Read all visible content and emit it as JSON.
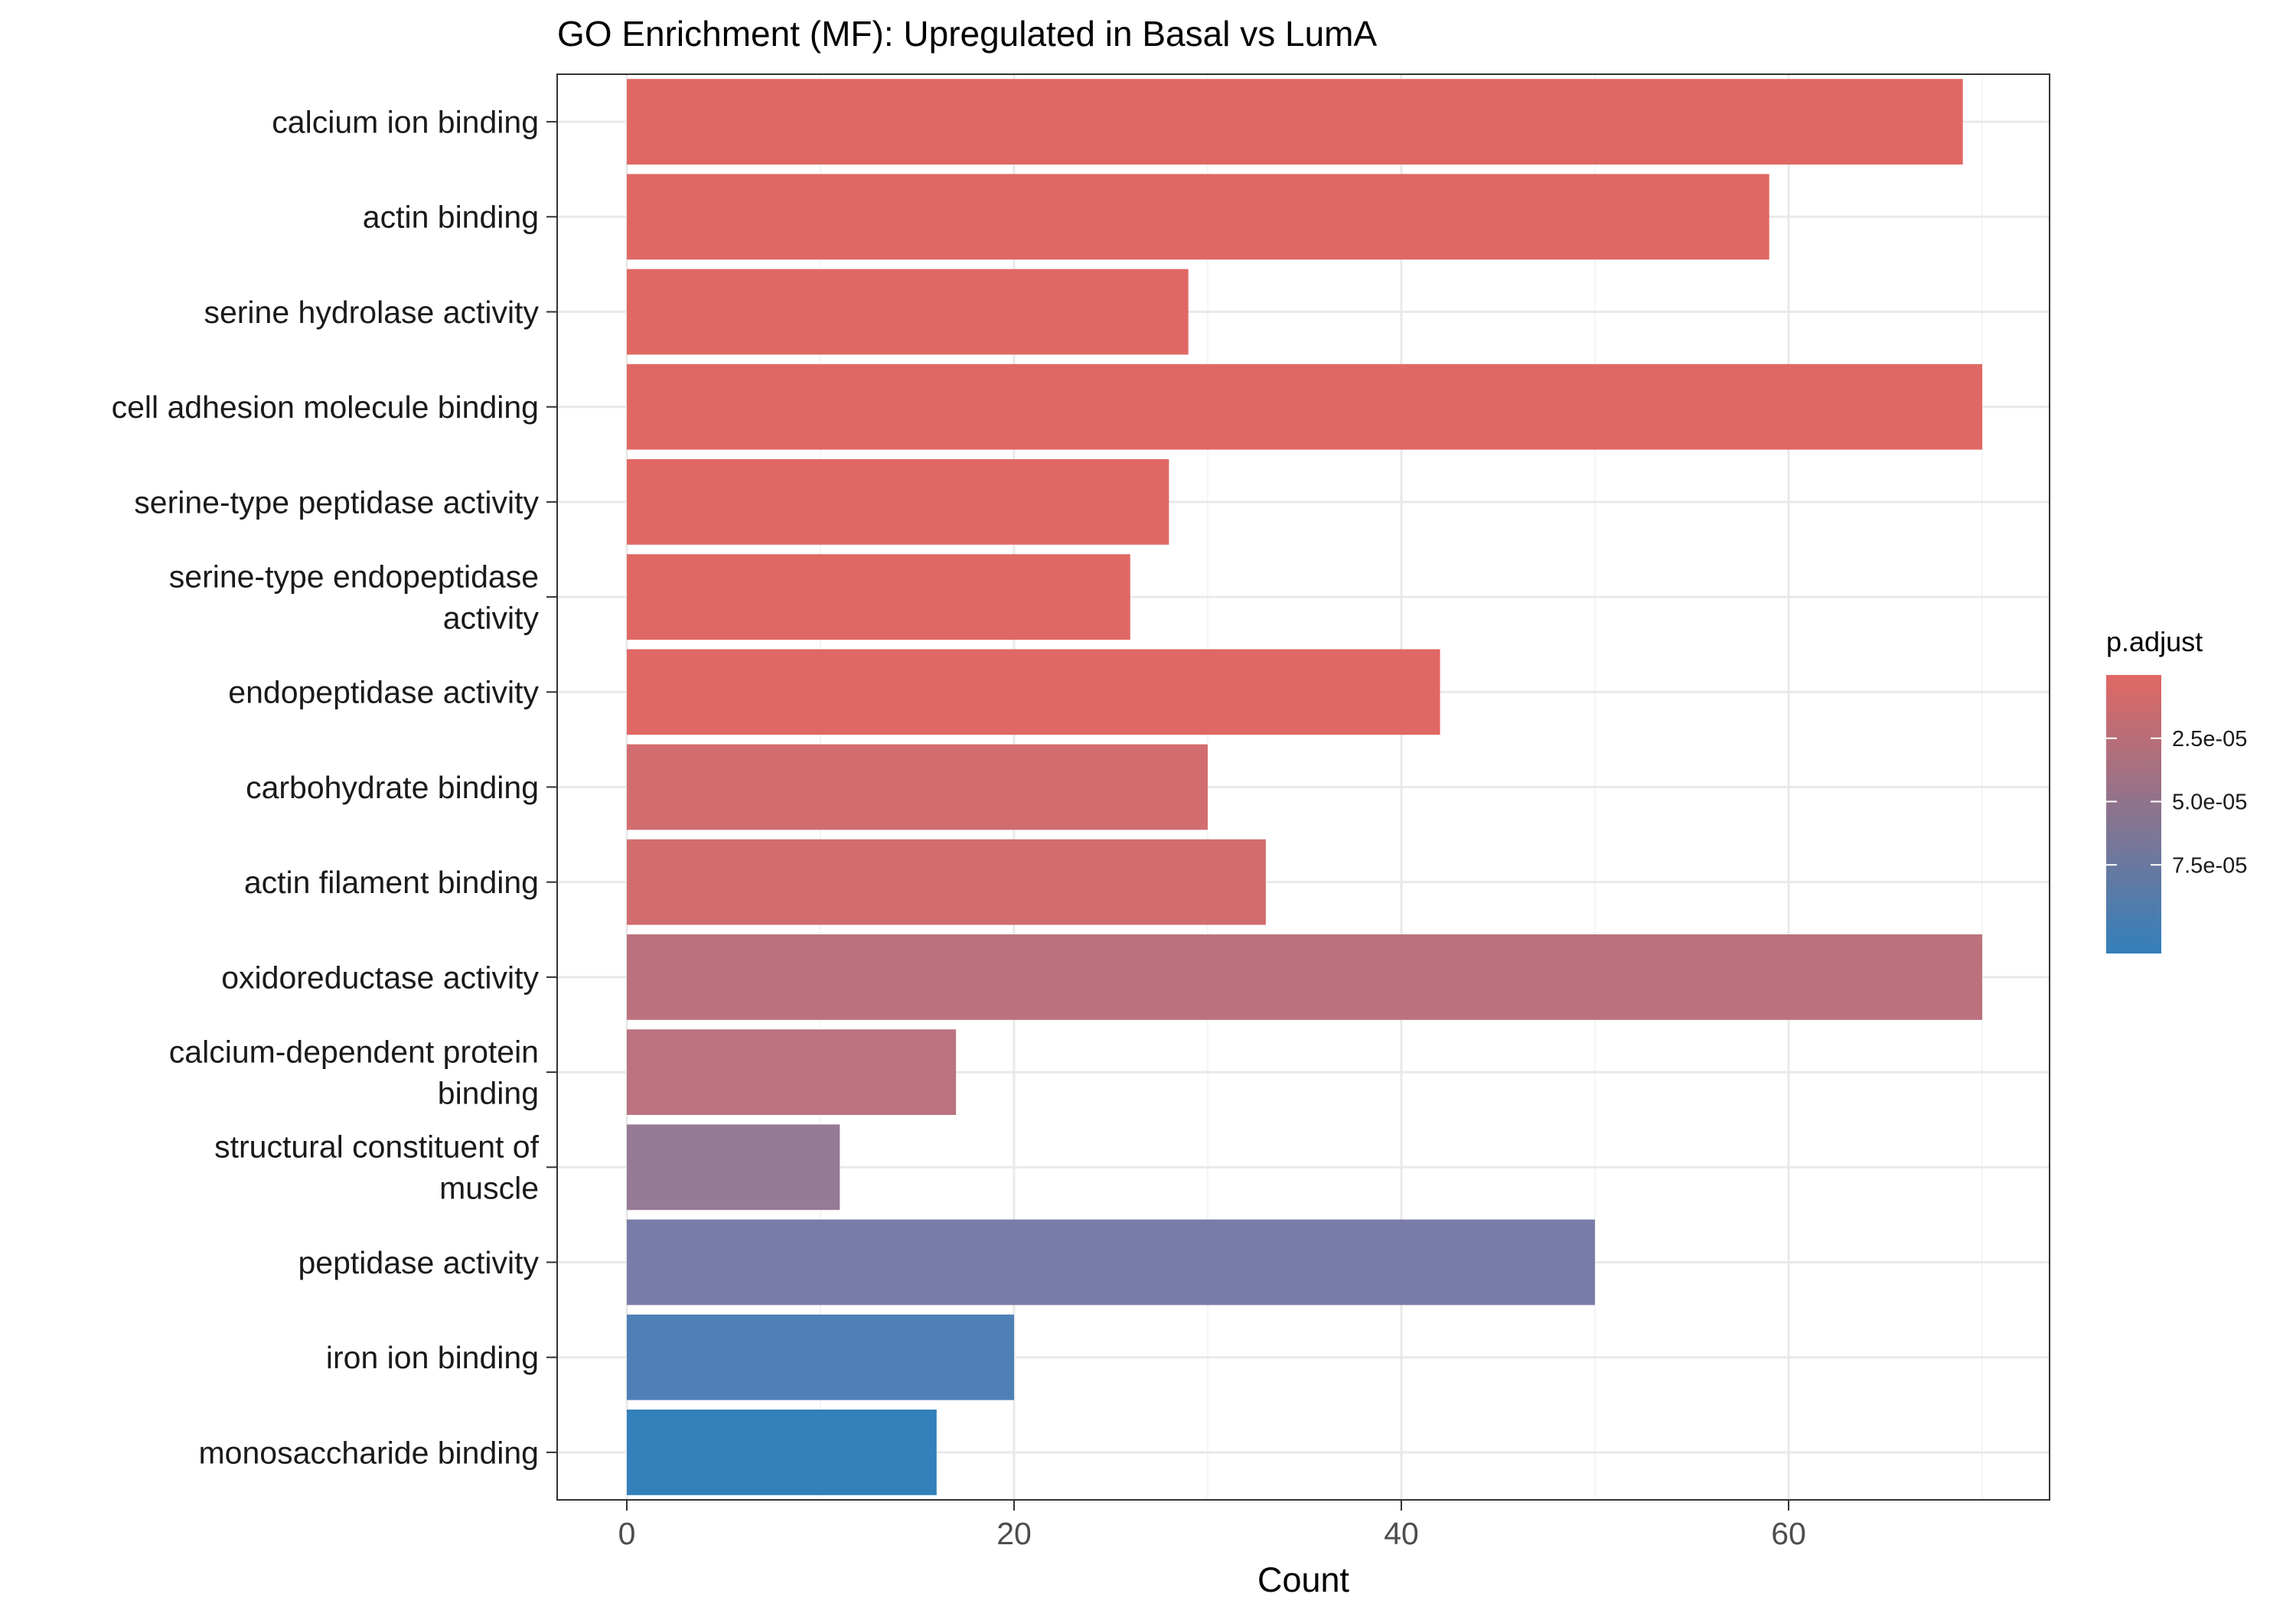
{
  "chart_data": {
    "type": "bar",
    "orientation": "horizontal",
    "title": "GO Enrichment (MF): Upregulated in Basal vs LumA",
    "xlabel": "Count",
    "ylabel": "",
    "xlim": [
      0,
      70
    ],
    "x_ticks": [
      0,
      20,
      40,
      60
    ],
    "grid": true,
    "categories": [
      "calcium ion binding",
      "actin binding",
      "serine hydrolase activity",
      "cell adhesion molecule binding",
      "serine-type peptidase activity",
      "serine-type endopeptidase activity",
      "endopeptidase activity",
      "carbohydrate binding",
      "actin filament binding",
      "oxidoreductase activity",
      "calcium-dependent protein binding",
      "structural constituent of muscle",
      "peptidase activity",
      "iron ion binding",
      "monosaccharide binding"
    ],
    "category_label_lines": [
      [
        "calcium ion binding"
      ],
      [
        "actin binding"
      ],
      [
        "serine hydrolase activity"
      ],
      [
        "cell adhesion molecule binding"
      ],
      [
        "serine-type peptidase activity"
      ],
      [
        "serine-type endopeptidase",
        "activity"
      ],
      [
        "endopeptidase activity"
      ],
      [
        "carbohydrate binding"
      ],
      [
        "actin filament binding"
      ],
      [
        "oxidoreductase activity"
      ],
      [
        "calcium-dependent protein",
        "binding"
      ],
      [
        "structural constituent of",
        "muscle"
      ],
      [
        "peptidase activity"
      ],
      [
        "iron ion binding"
      ],
      [
        "monosaccharide binding"
      ]
    ],
    "values": [
      69,
      59,
      29,
      70,
      28,
      26,
      42,
      30,
      33,
      70,
      17,
      11,
      50,
      20,
      16
    ],
    "p_adjust": [
      2e-07,
      5e-07,
      8e-07,
      1e-06,
      1.5e-06,
      2e-06,
      3e-06,
      1.3e-05,
      1.4e-05,
      3.6e-05,
      3.9e-05,
      5.5e-05,
      7.2e-05,
      9.6e-05,
      0.000107
    ],
    "colors": [
      "#E06864",
      "#E06864",
      "#E06864",
      "#E06864",
      "#E06864",
      "#E06864",
      "#E06864",
      "#D26D6F",
      "#D26D6F",
      "#BC727E",
      "#BA737F",
      "#977A96",
      "#7A7CA8",
      "#4E80B6",
      "#3380BB"
    ],
    "legend": {
      "title": "p.adjust",
      "position": "right",
      "range": [
        0,
        0.00011
      ],
      "color_low": "#E06864",
      "color_high": "#3380BB",
      "ticks": [
        {
          "value": 2.5e-05,
          "label": "2.5e-05"
        },
        {
          "value": 5e-05,
          "label": "5.0e-05"
        },
        {
          "value": 7.5e-05,
          "label": "7.5e-05"
        }
      ]
    }
  }
}
